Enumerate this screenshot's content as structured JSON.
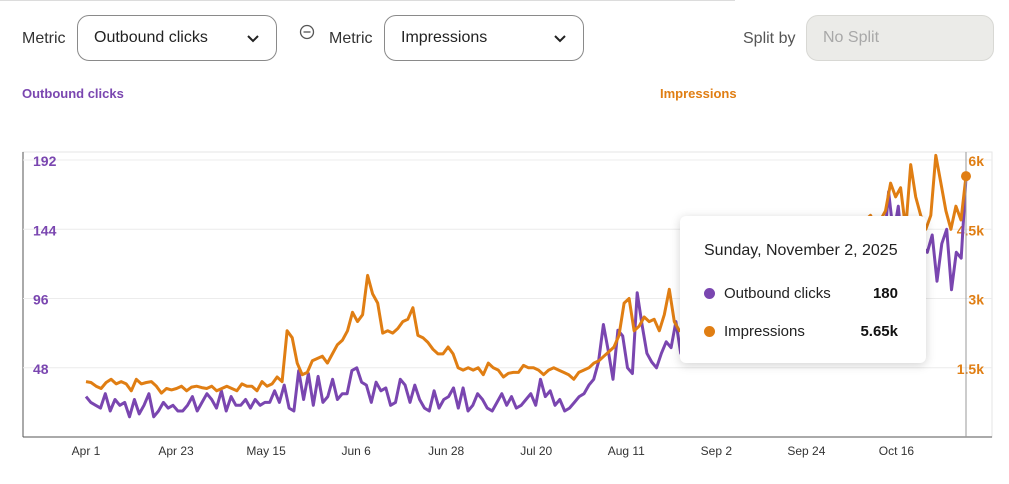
{
  "controls": {
    "metric1_label": "Metric",
    "metric1_value": "Outbound clicks",
    "metric2_label": "Metric",
    "metric2_value": "Impressions",
    "split_label": "Split by",
    "split_value": "No Split"
  },
  "colors": {
    "clicks": "#7a46b0",
    "impressions": "#e07e13",
    "grid": "#ececec",
    "axis": "#555555"
  },
  "tooltip": {
    "date": "Sunday, November 2, 2025",
    "rows": [
      {
        "name": "Outbound clicks",
        "value": "180"
      },
      {
        "name": "Impressions",
        "value": "5.65k"
      }
    ]
  },
  "chart_data": {
    "type": "line",
    "title": "",
    "y_left": {
      "label": "Outbound clicks",
      "ticks": [
        "48",
        "96",
        "144",
        "192"
      ],
      "range": [
        0,
        192
      ]
    },
    "y_right": {
      "label": "Impressions",
      "ticks": [
        "1.5k",
        "3k",
        "4.5k",
        "6k"
      ],
      "range": [
        0,
        6000
      ]
    },
    "x_ticks": [
      "Apr 1",
      "Apr 23",
      "May 15",
      "Jun 6",
      "Jun 28",
      "Jul 20",
      "Aug 11",
      "Sep 2",
      "Sep 24",
      "Oct 16"
    ],
    "x_start": "2025-04-01",
    "x_end": "2025-11-02",
    "series": [
      {
        "name": "Outbound clicks",
        "axis": "left",
        "values": [
          28,
          24,
          22,
          20,
          30,
          18,
          26,
          22,
          24,
          14,
          26,
          16,
          22,
          30,
          14,
          18,
          24,
          20,
          22,
          18,
          18,
          22,
          28,
          18,
          24,
          30,
          26,
          20,
          32,
          18,
          28,
          22,
          22,
          26,
          20,
          26,
          22,
          24,
          24,
          32,
          24,
          36,
          20,
          18,
          46,
          26,
          44,
          22,
          42,
          24,
          28,
          40,
          26,
          30,
          30,
          46,
          48,
          38,
          36,
          24,
          38,
          32,
          34,
          22,
          24,
          40,
          36,
          24,
          36,
          26,
          20,
          18,
          32,
          20,
          26,
          28,
          34,
          20,
          34,
          18,
          22,
          30,
          26,
          20,
          18,
          24,
          30,
          22,
          28,
          20,
          22,
          26,
          30,
          22,
          40,
          28,
          32,
          22,
          26,
          18,
          20,
          24,
          28,
          30,
          36,
          40,
          52,
          78,
          60,
          40,
          74,
          70,
          48,
          44,
          100,
          78,
          58,
          52,
          48,
          58,
          66,
          62,
          80,
          58,
          80,
          76,
          68,
          68,
          74,
          60,
          72,
          86,
          76,
          64,
          72,
          90,
          88,
          94,
          90,
          94,
          96,
          92,
          100,
          98,
          94,
          106,
          102,
          98,
          108,
          110,
          106,
          112,
          118,
          108,
          110,
          104,
          116,
          112,
          128,
          120,
          114,
          112,
          118,
          132,
          124,
          130,
          170,
          140,
          160,
          122,
          138,
          146,
          118,
          132,
          128,
          140,
          108,
          134,
          144,
          102,
          128,
          124,
          180
        ]
      },
      {
        "name": "Impressions",
        "axis": "right",
        "values": [
          1200,
          1180,
          1100,
          1050,
          1180,
          1250,
          1150,
          1200,
          1150,
          1000,
          1250,
          1150,
          1180,
          1200,
          1100,
          950,
          1050,
          1020,
          1050,
          1100,
          1000,
          1080,
          1100,
          1070,
          1050,
          1100,
          1000,
          1050,
          1100,
          1050,
          1000,
          1150,
          1100,
          1100,
          1000,
          1200,
          1100,
          1150,
          1300,
          1200,
          2300,
          2150,
          1600,
          1350,
          1400,
          1650,
          1700,
          1750,
          1600,
          1800,
          2000,
          2100,
          2300,
          2700,
          2500,
          2650,
          3500,
          3100,
          2900,
          2250,
          2300,
          2250,
          2350,
          2500,
          2550,
          2800,
          2200,
          2150,
          2050,
          1900,
          1800,
          1800,
          1950,
          1800,
          1500,
          1450,
          1500,
          1450,
          1500,
          1350,
          1600,
          1500,
          1450,
          1300,
          1380,
          1400,
          1400,
          1550,
          1500,
          1500,
          1450,
          1350,
          1450,
          1500,
          1450,
          1400,
          1350,
          1250,
          1400,
          1450,
          1500,
          1600,
          1650,
          1750,
          1850,
          1950,
          2200,
          2900,
          3000,
          2300,
          2400,
          2600,
          2500,
          2550,
          2300,
          2650,
          3200,
          2500,
          2300,
          2300,
          2600,
          3300,
          3400,
          2800,
          3000,
          3400,
          3200,
          3000,
          2900,
          3200,
          3250,
          3000,
          3300,
          3400,
          3600,
          3600,
          3500,
          3700,
          3700,
          3800,
          3900,
          3850,
          4000,
          4100,
          4050,
          4200,
          4300,
          4200,
          4350,
          4400,
          4300,
          4500,
          4400,
          4600,
          4500,
          4700,
          4800,
          4600,
          4700,
          4900,
          5500,
          5200,
          5400,
          4500,
          5900,
          5200,
          4800,
          4500,
          4800,
          6100,
          5500,
          4900,
          4500,
          5000,
          4700,
          5650
        ]
      }
    ],
    "grid": true
  }
}
